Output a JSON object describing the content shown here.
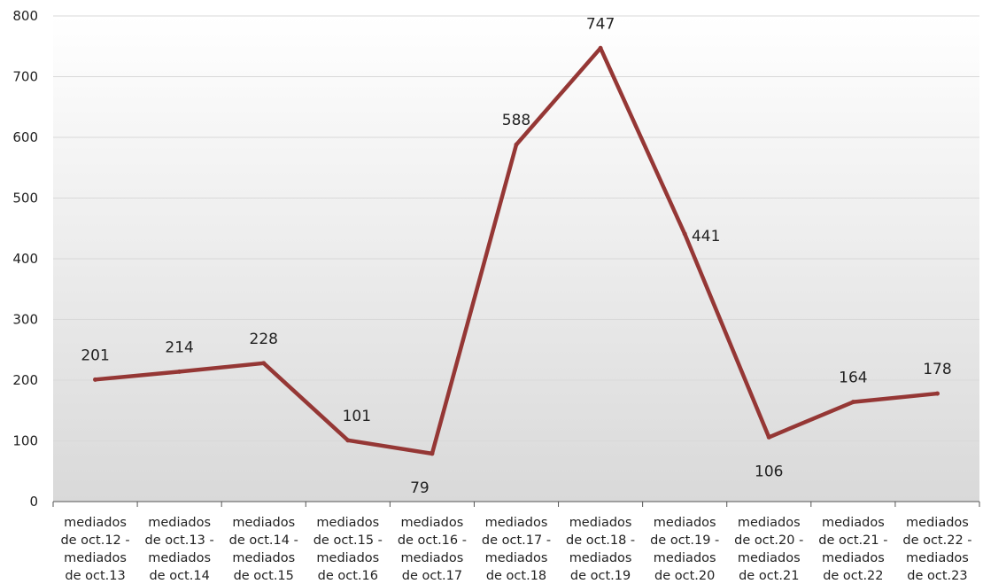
{
  "chart_data": {
    "type": "line",
    "categories": [
      [
        "mediados",
        "de oct.12 -",
        "mediados",
        "de oct.13"
      ],
      [
        "mediados",
        "de oct.13 -",
        "mediados",
        "de oct.14"
      ],
      [
        "mediados",
        "de oct.14 -",
        "mediados",
        "de oct.15"
      ],
      [
        "mediados",
        "de oct.15 -",
        "mediados",
        "de oct.16"
      ],
      [
        "mediados",
        "de oct.16 -",
        "mediados",
        "de oct.17"
      ],
      [
        "mediados",
        "de oct.17 -",
        "mediados",
        "de oct.18"
      ],
      [
        "mediados",
        "de oct.18 -",
        "mediados",
        "de oct.19"
      ],
      [
        "mediados",
        "de oct.19 -",
        "mediados",
        "de oct.20"
      ],
      [
        "mediados",
        "de oct.20 -",
        "mediados",
        "de oct.21"
      ],
      [
        "mediados",
        "de oct.21 -",
        "mediados",
        "de oct.22"
      ],
      [
        "mediados",
        "de oct.22 -",
        "mediados",
        "de oct.23"
      ]
    ],
    "values": [
      201,
      214,
      228,
      101,
      79,
      588,
      747,
      441,
      106,
      164,
      178
    ],
    "data_labels": [
      "201",
      "214",
      "228",
      "101",
      "79",
      "588",
      "747",
      "441",
      "106",
      "164",
      "178"
    ],
    "yticks": [
      0,
      100,
      200,
      300,
      400,
      500,
      600,
      700,
      800
    ],
    "ylim": [
      0,
      800
    ],
    "grid": true,
    "line_color": "#953735",
    "background_gradient": [
      "#ffffff",
      "#d9d9d9"
    ],
    "gridline_color": "#d9d9d9",
    "axis_color": "#555555"
  }
}
